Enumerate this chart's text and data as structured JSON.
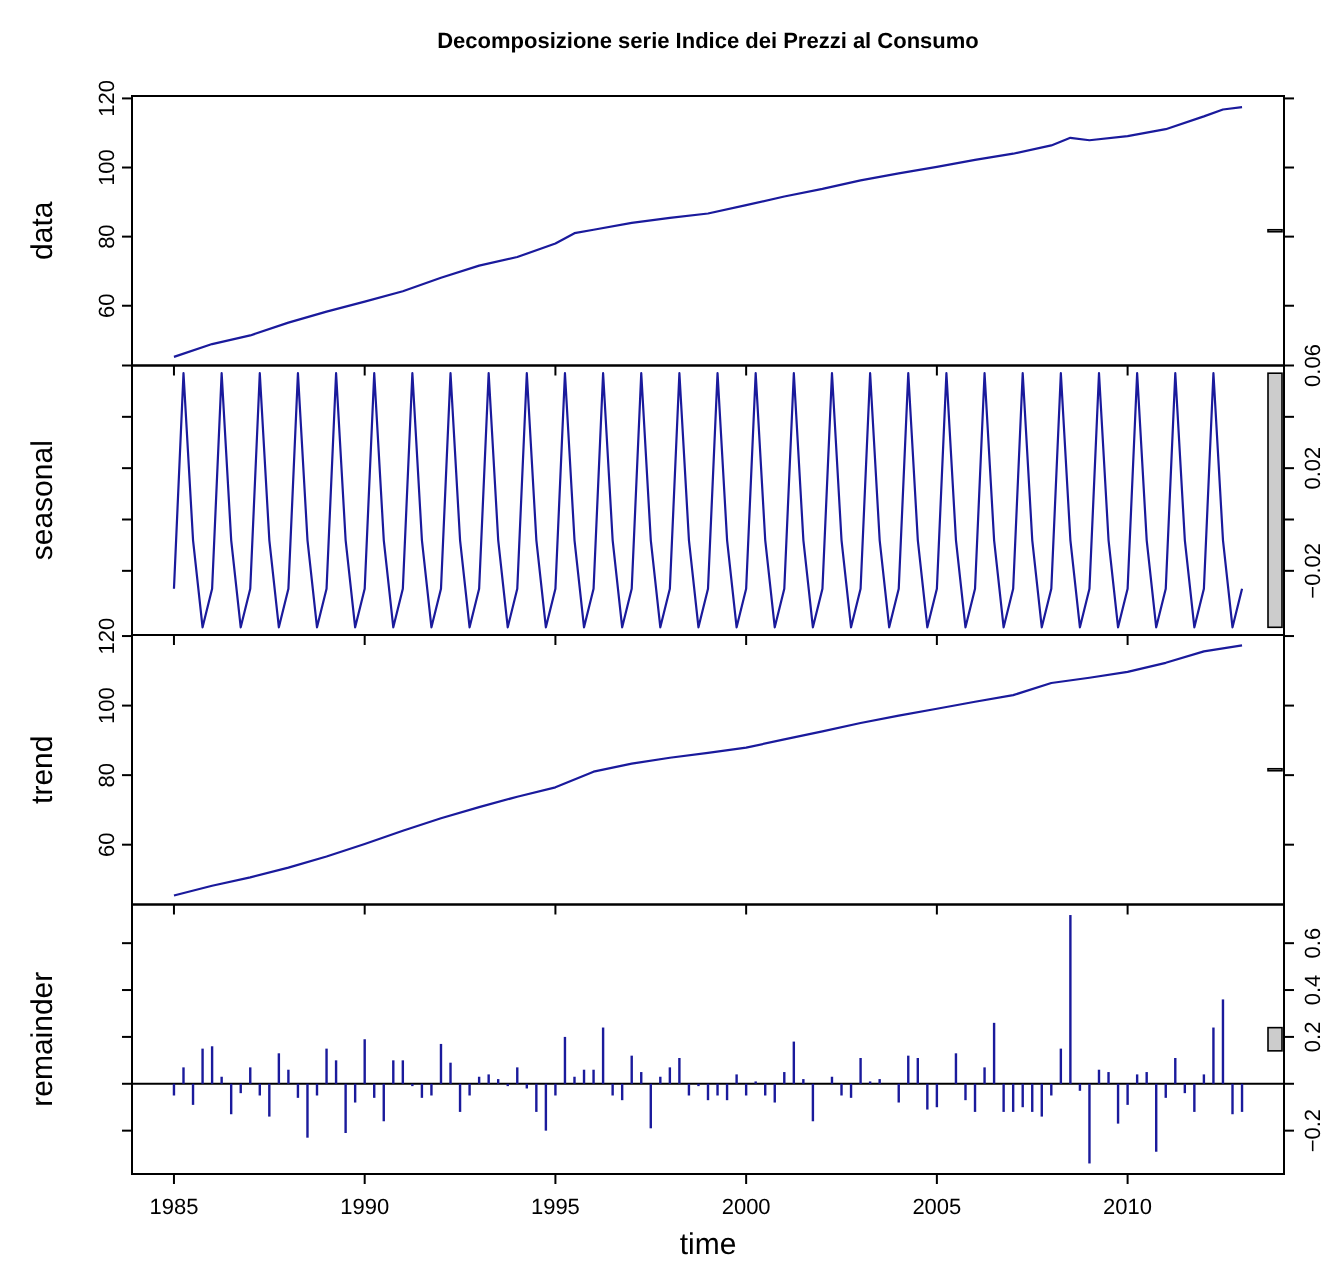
{
  "chart_data": [
    {
      "type": "line",
      "title": "Decomposizione serie Indice dei Prezzi al Consumo",
      "ylabel": "data",
      "xlim": [
        1983.9,
        2014.1
      ],
      "xticks": [
        1985,
        1990,
        1995,
        2000,
        2005,
        2010
      ],
      "ylim": [
        42.7,
        120.7
      ],
      "yticks": [
        60,
        80,
        100,
        120
      ],
      "tick_labels": "y",
      "series": [
        {
          "color": "#1a1a9c",
          "x": [
            1985,
            1986,
            1987,
            1988,
            1989,
            1990,
            1991,
            1992,
            1993,
            1994,
            1995,
            1995.5,
            1996,
            1997,
            1998,
            1999,
            2000,
            2001,
            2002,
            2003,
            2004,
            2005,
            2006,
            2007,
            2008,
            2008.5,
            2009,
            2010,
            2011,
            2012,
            2012.5,
            2013
          ],
          "values": [
            45.2,
            48.9,
            51.4,
            55.1,
            58.3,
            61.2,
            64.2,
            68.1,
            71.6,
            74.1,
            78,
            81,
            82,
            84,
            85.4,
            86.7,
            89.1,
            91.6,
            93.8,
            96.3,
            98.3,
            100.2,
            102.2,
            104,
            106.4,
            108.6,
            107.9,
            109.1,
            111.1,
            114.8,
            116.8,
            117.5
          ]
        }
      ]
    },
    {
      "type": "line",
      "ylabel": "seasonal",
      "xlim": [
        1983.9,
        2014.1
      ],
      "xticks": [
        1985,
        1990,
        1995,
        2000,
        2005,
        2010
      ],
      "ylim": [
        -0.045,
        0.06
      ],
      "yticks": [
        {
          "value": -0.02,
          "label": "−0.02"
        },
        {
          "value": 0,
          "label": null
        },
        0.02,
        {
          "value": 0.04,
          "label": null
        },
        0.06
      ],
      "tick_labels": "y",
      "x": [
        1985,
        1985.25,
        1985.5,
        1985.75,
        1986,
        1986.25,
        1986.5,
        1986.75,
        1987,
        1987.25,
        1987.5,
        1987.75,
        1988,
        1988.25,
        1988.5,
        1988.75,
        1989,
        1989.25,
        1989.5,
        1989.75,
        1990,
        1990.25,
        1990.5,
        1990.75,
        1991,
        1991.25,
        1991.5,
        1991.75,
        1992,
        1992.25,
        1992.5,
        1992.75,
        1993,
        1993.25,
        1993.5,
        1993.75,
        1994,
        1994.25,
        1994.5,
        1994.75,
        1995,
        1995.25,
        1995.5,
        1995.75,
        1996,
        1996.25,
        1996.5,
        1996.75,
        1997,
        1997.25,
        1997.5,
        1997.75,
        1998,
        1998.25,
        1998.5,
        1998.75,
        1999,
        1999.25,
        1999.5,
        1999.75,
        2000,
        2000.25,
        2000.5,
        2000.75,
        2001,
        2001.25,
        2001.5,
        2001.75,
        2002,
        2002.25,
        2002.5,
        2002.75,
        2003,
        2003.25,
        2003.5,
        2003.75,
        2004,
        2004.25,
        2004.5,
        2004.75,
        2005,
        2005.25,
        2005.5,
        2005.75,
        2006,
        2006.25,
        2006.5,
        2006.75,
        2007,
        2007.25,
        2007.5,
        2007.75,
        2008,
        2008.25,
        2008.5,
        2008.75,
        2009,
        2009.25,
        2009.5,
        2009.75,
        2010,
        2010.25,
        2010.5,
        2010.75,
        2011,
        2011.25,
        2011.5,
        2011.75,
        2012,
        2012.25,
        2012.5,
        2012.75,
        2013
      ],
      "series": [
        {
          "color": "#1a1a9c",
          "values": [
            -0.027,
            0.057,
            -0.008,
            -0.042,
            -0.027,
            0.057,
            -0.008,
            -0.042,
            -0.027,
            0.057,
            -0.008,
            -0.042,
            -0.027,
            0.057,
            -0.008,
            -0.042,
            -0.027,
            0.057,
            -0.008,
            -0.042,
            -0.027,
            0.057,
            -0.008,
            -0.042,
            -0.027,
            0.057,
            -0.008,
            -0.042,
            -0.027,
            0.057,
            -0.008,
            -0.042,
            -0.027,
            0.057,
            -0.008,
            -0.042,
            -0.027,
            0.057,
            -0.008,
            -0.042,
            -0.027,
            0.057,
            -0.008,
            -0.042,
            -0.027,
            0.057,
            -0.008,
            -0.042,
            -0.027,
            0.057,
            -0.008,
            -0.042,
            -0.027,
            0.057,
            -0.008,
            -0.042,
            -0.027,
            0.057,
            -0.008,
            -0.042,
            -0.027,
            0.057,
            -0.008,
            -0.042,
            -0.027,
            0.057,
            -0.008,
            -0.042,
            -0.027,
            0.057,
            -0.008,
            -0.042,
            -0.027,
            0.057,
            -0.008,
            -0.042,
            -0.027,
            0.057,
            -0.008,
            -0.042,
            -0.027,
            0.057,
            -0.008,
            -0.042,
            -0.027,
            0.057,
            -0.008,
            -0.042,
            -0.027,
            0.057,
            -0.008,
            -0.042,
            -0.027,
            0.057,
            -0.008,
            -0.042,
            -0.027,
            0.057,
            -0.008,
            -0.042,
            -0.027,
            0.057,
            -0.008,
            -0.042,
            -0.027,
            0.057,
            -0.008,
            -0.042,
            -0.027,
            0.057,
            -0.008,
            -0.042,
            -0.027
          ]
        }
      ]
    },
    {
      "type": "line",
      "ylabel": "trend",
      "xlim": [
        1983.9,
        2014.1
      ],
      "xticks": [
        1985,
        1990,
        1995,
        2000,
        2005,
        2010
      ],
      "ylim": [
        42.8,
        120.3
      ],
      "yticks": [
        60,
        80,
        100,
        120
      ],
      "tick_labels": "y",
      "series": [
        {
          "color": "#1a1a9c",
          "x": [
            1985,
            1986,
            1987,
            1988,
            1989,
            1990,
            1991,
            1992,
            1993,
            1994,
            1995,
            1996,
            1997,
            1998,
            1999,
            2000,
            2001,
            2002,
            2003,
            2004,
            2005,
            2006,
            2007,
            2008,
            2009,
            2010,
            2011,
            2012,
            2013
          ],
          "values": [
            45.4,
            48.2,
            50.6,
            53.4,
            56.6,
            60.2,
            64,
            67.6,
            70.8,
            73.8,
            76.5,
            81,
            83.3,
            85,
            86.4,
            87.9,
            90.3,
            92.6,
            95,
            97.1,
            99.1,
            101.1,
            103,
            106.5,
            108,
            109.7,
            112.3,
            115.6,
            117.3
          ]
        }
      ]
    },
    {
      "type": "bar",
      "ylabel": "remainder",
      "xlabel": "time",
      "xlim": [
        1983.9,
        2014.1
      ],
      "xticks": [
        1985,
        1990,
        1995,
        2000,
        2005,
        2010
      ],
      "y2lim": [
        -0.385,
        0.765
      ],
      "y2ticks": [
        {
          "value": -0.2,
          "label": "−0.2"
        },
        {
          "value": 0,
          "label": null
        },
        0.2,
        0.4,
        0.6
      ],
      "x": [
        1985,
        1985.25,
        1985.5,
        1985.75,
        1986,
        1986.25,
        1986.5,
        1986.75,
        1987,
        1987.25,
        1987.5,
        1987.75,
        1988,
        1988.25,
        1988.5,
        1988.75,
        1989,
        1989.25,
        1989.5,
        1989.75,
        1990,
        1990.25,
        1990.5,
        1990.75,
        1991,
        1991.25,
        1991.5,
        1991.75,
        1992,
        1992.25,
        1992.5,
        1992.75,
        1993,
        1993.25,
        1993.5,
        1993.75,
        1994,
        1994.25,
        1994.5,
        1994.75,
        1995,
        1995.25,
        1995.5,
        1995.75,
        1996,
        1996.25,
        1996.5,
        1996.75,
        1997,
        1997.25,
        1997.5,
        1997.75,
        1998,
        1998.25,
        1998.5,
        1998.75,
        1999,
        1999.25,
        1999.5,
        1999.75,
        2000,
        2000.25,
        2000.5,
        2000.75,
        2001,
        2001.25,
        2001.5,
        2001.75,
        2002,
        2002.25,
        2002.5,
        2002.75,
        2003,
        2003.25,
        2003.5,
        2003.75,
        2004,
        2004.25,
        2004.5,
        2004.75,
        2005,
        2005.25,
        2005.5,
        2005.75,
        2006,
        2006.25,
        2006.5,
        2006.75,
        2007,
        2007.25,
        2007.5,
        2007.75,
        2008,
        2008.25,
        2008.5,
        2008.75,
        2009,
        2009.25,
        2009.5,
        2009.75,
        2010,
        2010.25,
        2010.5,
        2010.75,
        2011,
        2011.25,
        2011.5,
        2011.75,
        2012,
        2012.25,
        2012.5,
        2012.75,
        2013
      ],
      "series": [
        {
          "color": "#1a1a9c",
          "axis": "y2",
          "values": [
            -0.05,
            0.07,
            -0.09,
            0.15,
            0.16,
            0.03,
            -0.13,
            -0.04,
            0.07,
            -0.05,
            -0.14,
            0.13,
            0.06,
            -0.06,
            -0.23,
            -0.05,
            0.15,
            0.1,
            -0.21,
            -0.08,
            0.19,
            -0.06,
            -0.16,
            0.1,
            0.1,
            -0.01,
            -0.06,
            -0.05,
            0.17,
            0.09,
            -0.12,
            -0.05,
            0.03,
            0.04,
            0.02,
            -0.01,
            0.07,
            -0.02,
            -0.12,
            -0.2,
            -0.05,
            0.2,
            0.03,
            0.06,
            0.06,
            0.24,
            -0.05,
            -0.07,
            0.12,
            0.05,
            -0.19,
            0.03,
            0.07,
            0.11,
            -0.05,
            -0.01,
            -0.07,
            -0.05,
            -0.07,
            0.04,
            -0.05,
            0.01,
            -0.05,
            -0.08,
            0.05,
            0.18,
            0.02,
            -0.16,
            0,
            0.03,
            -0.05,
            -0.06,
            0.11,
            0.01,
            0.02,
            0,
            -0.08,
            0.12,
            0.11,
            -0.11,
            -0.1,
            0,
            0.13,
            -0.07,
            -0.12,
            0.07,
            0.26,
            -0.12,
            -0.12,
            -0.1,
            -0.12,
            -0.14,
            -0.05,
            0.15,
            0.72,
            -0.03,
            -0.34,
            0.06,
            0.05,
            -0.17,
            -0.09,
            0.04,
            0.05,
            -0.29,
            -0.06,
            0.11,
            -0.04,
            -0.12,
            0.04,
            0.24,
            0.36,
            -0.13,
            -0.12
          ]
        }
      ]
    }
  ]
}
